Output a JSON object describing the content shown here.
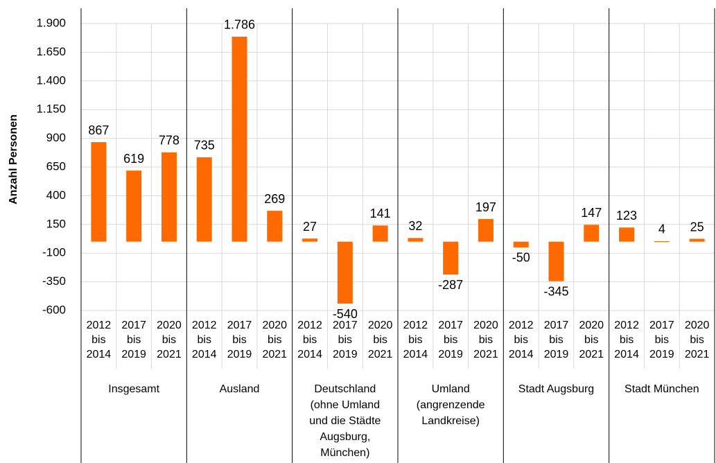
{
  "chart_data": {
    "type": "bar",
    "y_axis_label": "Anzahl Personen",
    "categories": [
      [
        "2012",
        "bis",
        "2014"
      ],
      [
        "2017",
        "bis",
        "2019"
      ],
      [
        "2020",
        "bis",
        "2021"
      ],
      [
        "2012",
        "bis",
        "2014"
      ],
      [
        "2017",
        "bis",
        "2019"
      ],
      [
        "2020",
        "bis",
        "2021"
      ],
      [
        "2012",
        "bis",
        "2014"
      ],
      [
        "2017",
        "bis",
        "2019"
      ],
      [
        "2020",
        "bis",
        "2021"
      ],
      [
        "2012",
        "bis",
        "2014"
      ],
      [
        "2017",
        "bis",
        "2019"
      ],
      [
        "2020",
        "bis",
        "2021"
      ],
      [
        "2012",
        "bis",
        "2014"
      ],
      [
        "2017",
        "bis",
        "2019"
      ],
      [
        "2020",
        "bis",
        "2021"
      ],
      [
        "2012",
        "bis",
        "2014"
      ],
      [
        "2017",
        "bis",
        "2019"
      ],
      [
        "2020",
        "bis",
        "2021"
      ]
    ],
    "groups": [
      [
        "Insgesamt"
      ],
      [
        "Ausland"
      ],
      [
        "Deutschland",
        "(ohne Umland",
        "und die Städte",
        "Augsburg,",
        "München)"
      ],
      [
        "Umland",
        "(angrenzende",
        "Landkreise)"
      ],
      [
        "Stadt Augsburg"
      ],
      [
        "Stadt München"
      ]
    ],
    "values": [
      867,
      619,
      778,
      735,
      1786,
      269,
      27,
      -540,
      141,
      32,
      -287,
      197,
      -50,
      -345,
      147,
      123,
      4,
      25
    ],
    "value_labels": [
      "867",
      "619",
      "778",
      "735",
      "1.786",
      "269",
      "27",
      "-540",
      "141",
      "32",
      "-287",
      "197",
      "-50",
      "-345",
      "147",
      "123",
      "4",
      "25"
    ],
    "color": "#ff6a00",
    "ylim": [
      -600,
      1900
    ],
    "yticks": [
      -600,
      -350,
      -100,
      150,
      400,
      650,
      900,
      {
        "value": 1150,
        "label": "1.150"
      },
      {
        "value": 1400,
        "label": "1.400"
      },
      {
        "value": 1650,
        "label": "1.650"
      },
      {
        "value": 1900,
        "label": "1.900"
      }
    ],
    "grid": true
  }
}
